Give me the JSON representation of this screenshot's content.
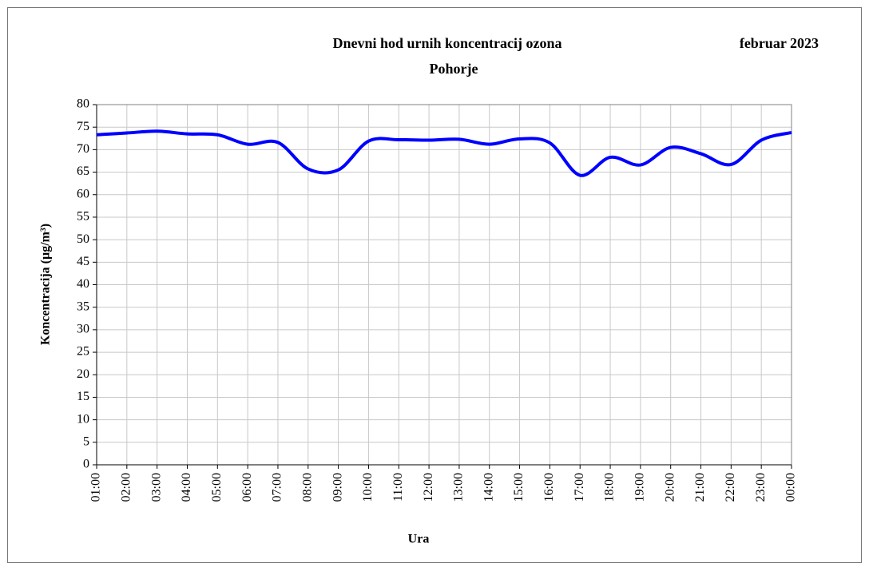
{
  "chart_data": {
    "type": "line",
    "title": "Dnevni hod urnih  koncentracij ozona",
    "title_date": "februar 2023",
    "subtitle": "Pohorje",
    "xlabel": "Ura",
    "ylabel": "Koncentracija  (µg/m³)",
    "categories": [
      "01:00",
      "02:00",
      "03:00",
      "04:00",
      "05:00",
      "06:00",
      "07:00",
      "08:00",
      "09:00",
      "10:00",
      "11:00",
      "12:00",
      "13:00",
      "14:00",
      "15:00",
      "16:00",
      "17:00",
      "18:00",
      "19:00",
      "20:00",
      "21:00",
      "22:00",
      "23:00",
      "00:00"
    ],
    "series": [
      {
        "name": "Pohorje",
        "color": "#0000ff",
        "values": [
          73.3,
          73.7,
          74.1,
          73.5,
          73.3,
          71.2,
          71.6,
          65.7,
          65.5,
          71.9,
          72.2,
          72.1,
          72.3,
          71.2,
          72.4,
          71.5,
          64.3,
          68.3,
          66.6,
          70.5,
          69.1,
          66.7,
          72.1,
          73.8
        ]
      }
    ],
    "ylim": [
      0,
      80
    ],
    "yticks": [
      0,
      5,
      10,
      15,
      20,
      25,
      30,
      35,
      40,
      45,
      50,
      55,
      60,
      65,
      70,
      75,
      80
    ],
    "grid": true,
    "smooth": true
  }
}
